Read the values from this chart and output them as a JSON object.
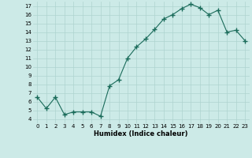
{
  "x": [
    0,
    1,
    2,
    3,
    4,
    5,
    6,
    7,
    8,
    9,
    10,
    11,
    12,
    13,
    14,
    15,
    16,
    17,
    18,
    19,
    20,
    21,
    22,
    23
  ],
  "y": [
    6.5,
    5.2,
    6.5,
    4.5,
    4.8,
    4.8,
    4.8,
    4.3,
    7.8,
    8.5,
    11.0,
    12.3,
    13.2,
    14.3,
    15.5,
    16.0,
    16.7,
    17.2,
    16.8,
    16.0,
    16.5,
    14.0,
    14.2,
    13.0
  ],
  "line_color": "#1a6b5a",
  "marker": "+",
  "marker_size": 4,
  "bg_color": "#cceae7",
  "grid_color": "#aed4cf",
  "xlabel": "Humidex (Indice chaleur)",
  "xlim": [
    -0.5,
    23.5
  ],
  "ylim": [
    3.5,
    17.5
  ],
  "yticks": [
    4,
    5,
    6,
    7,
    8,
    9,
    10,
    11,
    12,
    13,
    14,
    15,
    16,
    17
  ],
  "xticks": [
    0,
    1,
    2,
    3,
    4,
    5,
    6,
    7,
    8,
    9,
    10,
    11,
    12,
    13,
    14,
    15,
    16,
    17,
    18,
    19,
    20,
    21,
    22,
    23
  ]
}
